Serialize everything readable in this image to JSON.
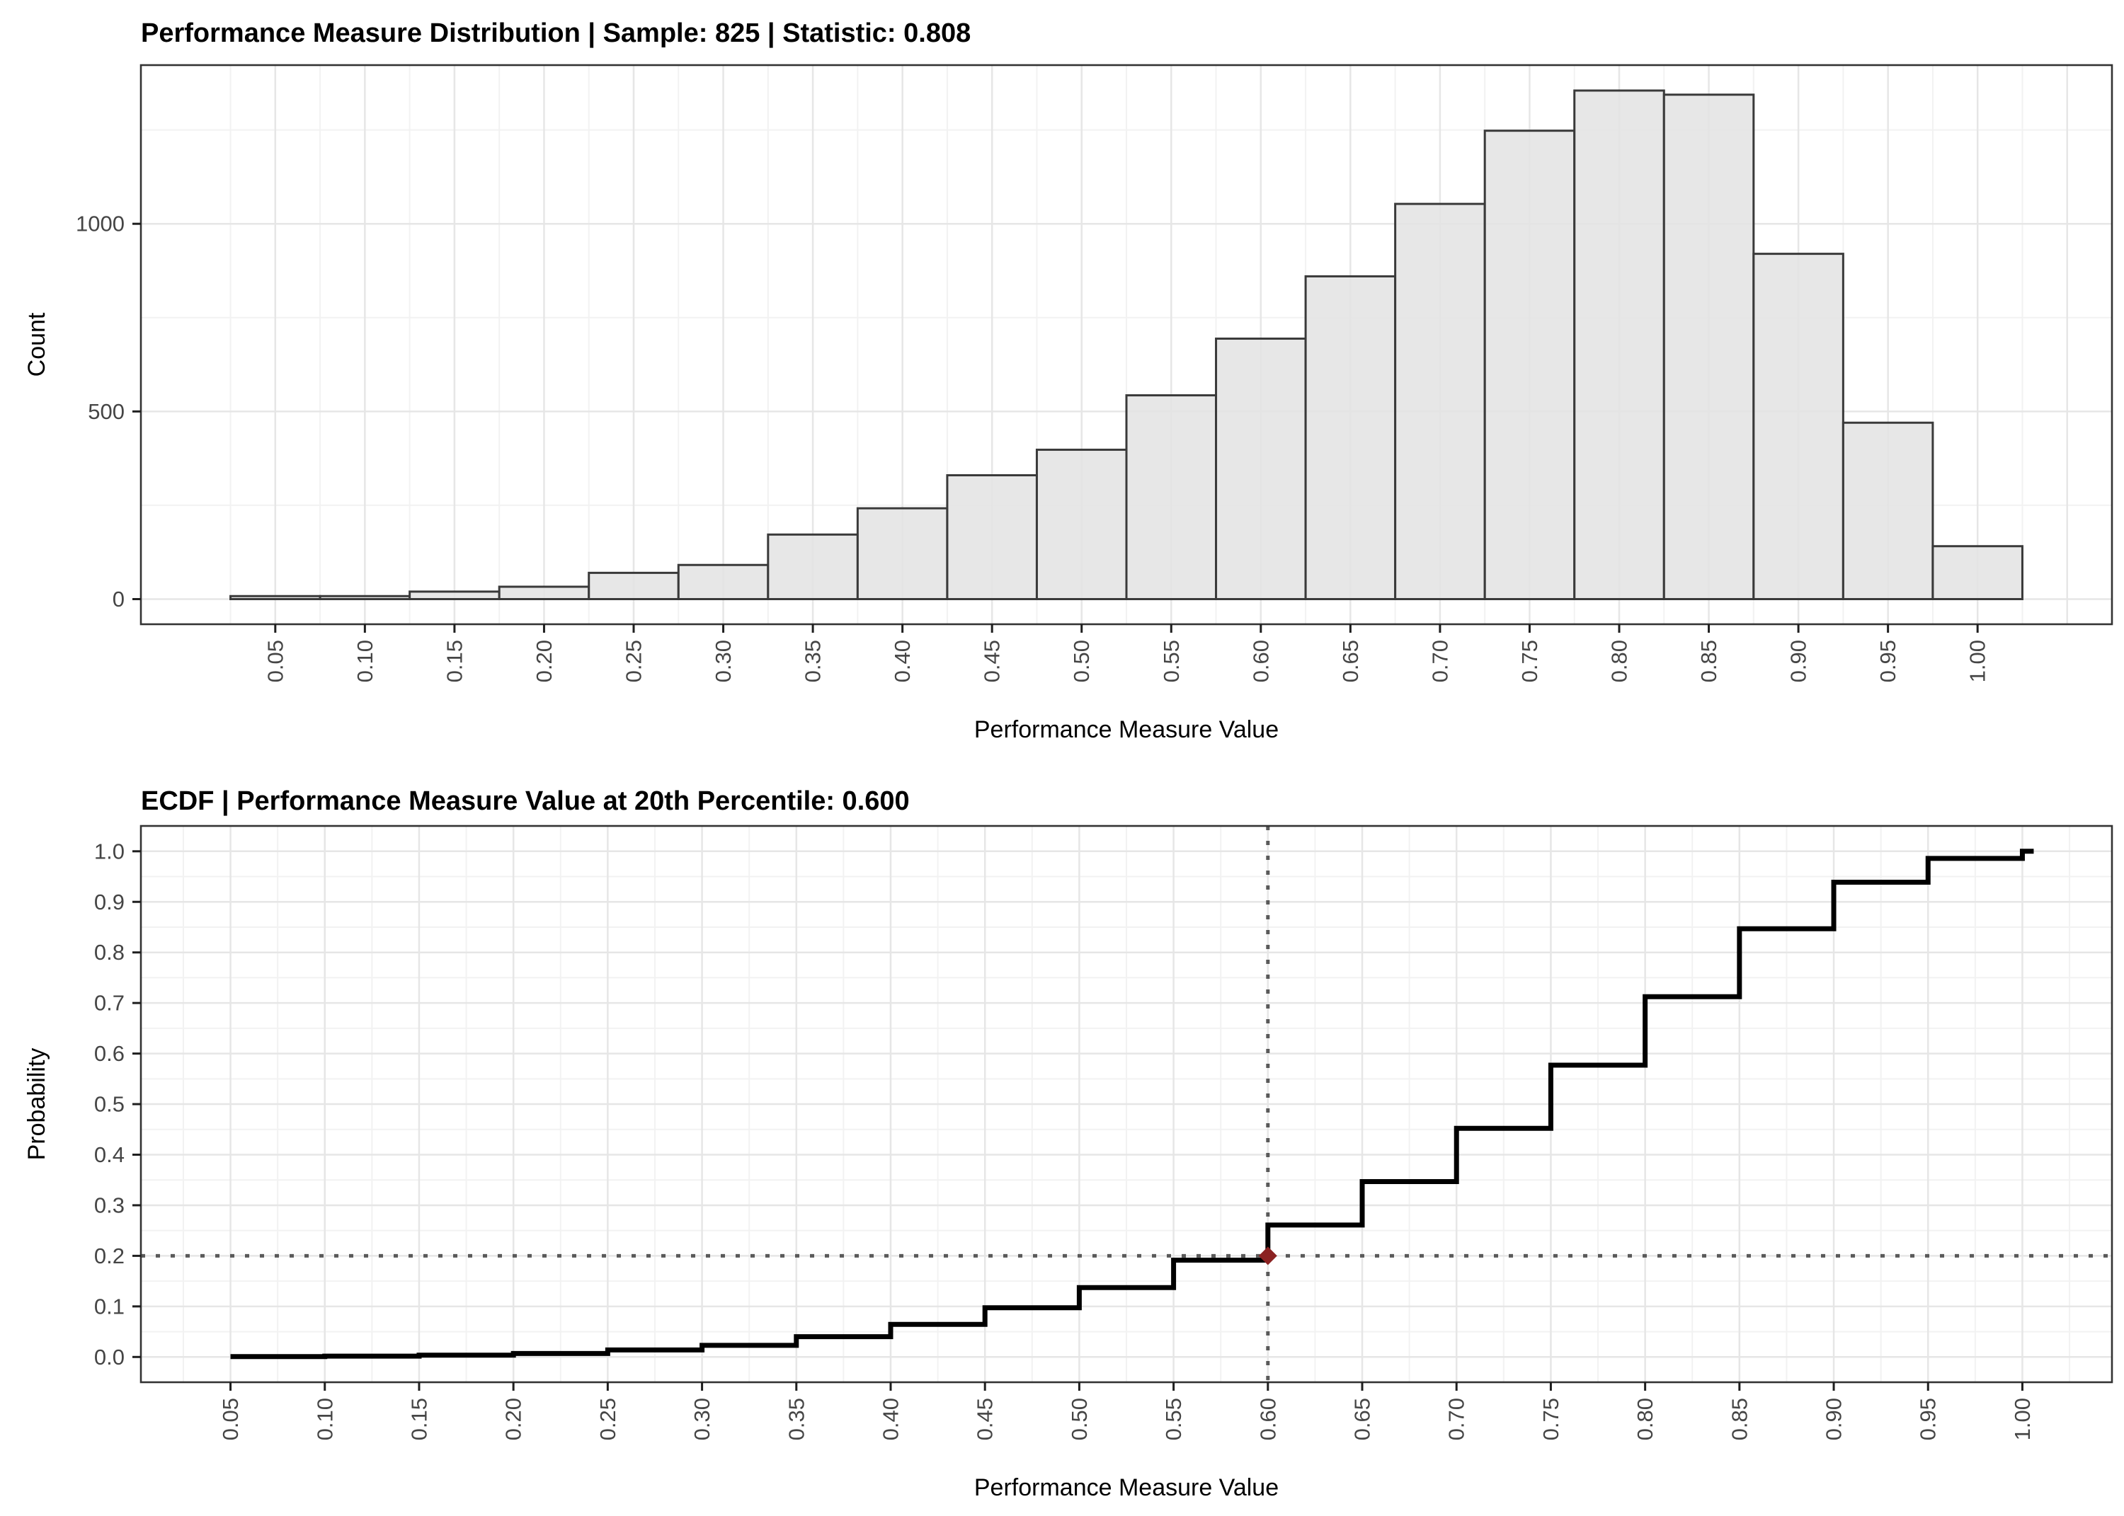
{
  "page": {
    "background": "#ffffff"
  },
  "colors": {
    "bar_fill": "#E4E4E4",
    "bar_stroke": "#3A3A3A",
    "panel_border": "#333333",
    "grid_major": "#E6E6E6",
    "grid_minor": "#F2F2F2",
    "tick_mark": "#1F1F1F",
    "tick_label": "#454545",
    "axis_title": "#000000",
    "title": "#000000",
    "ecdf_line": "#000000",
    "reference_line": "#5A5A5A",
    "point": "#8B2222"
  },
  "chart_data": [
    {
      "type": "bar",
      "subtype": "histogram",
      "title": "Performance Measure Distribution | Sample: 825 | Statistic: 0.808",
      "sample": "825",
      "statistic": "0.808",
      "xlabel": "Performance Measure Value",
      "ylabel": "Count",
      "bin_width": 0.05,
      "categories": [
        0.05,
        0.1,
        0.15,
        0.2,
        0.25,
        0.3,
        0.35,
        0.4,
        0.45,
        0.5,
        0.55,
        0.6,
        0.65,
        0.7,
        0.75,
        0.8,
        0.85,
        0.9,
        0.95,
        1.0
      ],
      "values": [
        8,
        8,
        20,
        33,
        70,
        91,
        172,
        242,
        330,
        398,
        543,
        694,
        860,
        1053,
        1248,
        1355,
        1344,
        920,
        470,
        141
      ],
      "x_tick_labels": [
        "0.05",
        "0.10",
        "0.15",
        "0.20",
        "0.25",
        "0.30",
        "0.35",
        "0.40",
        "0.45",
        "0.50",
        "0.55",
        "0.60",
        "0.65",
        "0.70",
        "0.75",
        "0.80",
        "0.85",
        "0.90",
        "0.95",
        "1.00"
      ],
      "y_tick_values": [
        0,
        500,
        1000
      ],
      "y_tick_labels": [
        "0",
        "500",
        "1000"
      ],
      "y_minor_gridlines": [
        250,
        750,
        1250
      ],
      "xlim": [
        -0.025,
        1.075
      ],
      "ylim": [
        0,
        1423
      ],
      "grid": "on",
      "legend": "none"
    },
    {
      "type": "line",
      "subtype": "ecdf-step",
      "title": "ECDF | Performance Measure Value at 20th Percentile: 0.600",
      "percentile": "20th",
      "percentile_value": "0.600",
      "xlabel": "Performance Measure Value",
      "ylabel": "Probability",
      "x": [
        0.05,
        0.1,
        0.15,
        0.2,
        0.25,
        0.3,
        0.35,
        0.4,
        0.45,
        0.5,
        0.55,
        0.6,
        0.65,
        0.7,
        0.75,
        0.8,
        0.85,
        0.9,
        0.95,
        1.0
      ],
      "cumulative_probability": [
        0.0008,
        0.0016,
        0.0036,
        0.0069,
        0.0139,
        0.023,
        0.0402,
        0.0644,
        0.0974,
        0.1372,
        0.1915,
        0.2609,
        0.3469,
        0.4522,
        0.577,
        0.7125,
        0.8469,
        0.9389,
        0.9859,
        1.0
      ],
      "x_tick_labels": [
        "0.05",
        "0.10",
        "0.15",
        "0.20",
        "0.25",
        "0.30",
        "0.35",
        "0.40",
        "0.45",
        "0.50",
        "0.55",
        "0.60",
        "0.65",
        "0.70",
        "0.75",
        "0.80",
        "0.85",
        "0.90",
        "0.95",
        "1.00"
      ],
      "y_tick_values": [
        0.0,
        0.1,
        0.2,
        0.3,
        0.4,
        0.5,
        0.6,
        0.7,
        0.8,
        0.9,
        1.0
      ],
      "y_tick_labels": [
        "0.0",
        "0.1",
        "0.2",
        "0.3",
        "0.4",
        "0.5",
        "0.6",
        "0.7",
        "0.8",
        "0.9",
        "1.0"
      ],
      "y_minor_gridlines": [
        0.05,
        0.15,
        0.25,
        0.35,
        0.45,
        0.55,
        0.65,
        0.75,
        0.85,
        0.95
      ],
      "reference_lines": {
        "horizontal_y": 0.2,
        "vertical_x": 0.6
      },
      "point": {
        "x": 0.6,
        "y": 0.2,
        "shape": "diamond"
      },
      "xlim": [
        0.0025,
        1.0475
      ],
      "ylim": [
        -0.05,
        1.05
      ],
      "grid": "on",
      "legend": "none"
    }
  ]
}
